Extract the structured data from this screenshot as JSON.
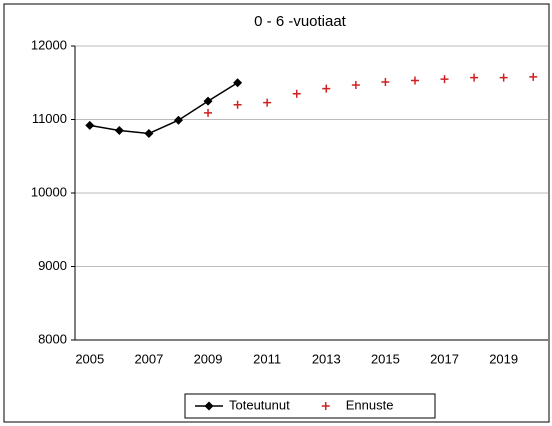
{
  "chart_data": {
    "type": "line",
    "title": "0 - 6 -vuotiaat",
    "categories": [
      2005,
      null,
      2007,
      null,
      2009,
      null,
      2011,
      null,
      2013,
      null,
      2015,
      null,
      2017,
      null,
      2019,
      null
    ],
    "series": [
      {
        "name": "Toteutunut",
        "color": "#000000",
        "marker": "diamond",
        "line": true,
        "values": [
          10920,
          10850,
          10810,
          10990,
          11250,
          11500,
          null,
          null,
          null,
          null,
          null,
          null,
          null,
          null,
          null,
          null
        ]
      },
      {
        "name": "Ennuste",
        "color": "#d02020",
        "marker": "plus",
        "line": false,
        "values": [
          null,
          null,
          null,
          null,
          11090,
          11200,
          11230,
          11350,
          11420,
          11470,
          11510,
          11530,
          11550,
          11570,
          11570,
          11580
        ]
      }
    ],
    "ylim": [
      8000,
      12000
    ],
    "yticks": [
      8000,
      9000,
      10000,
      11000,
      12000
    ],
    "grid": true,
    "legend": "bottom"
  }
}
